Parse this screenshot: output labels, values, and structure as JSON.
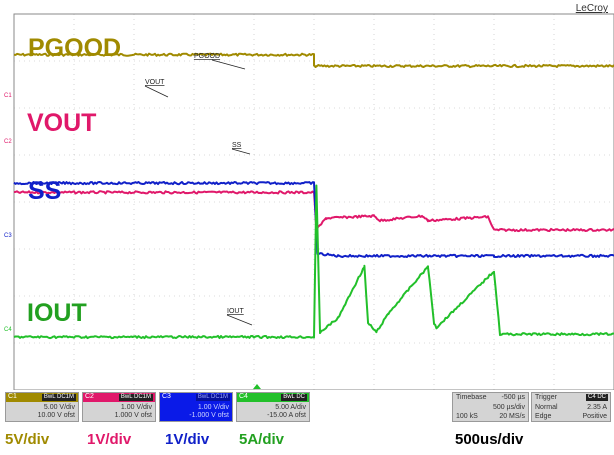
{
  "brand": "LeCroy",
  "labels": {
    "pgood": "PGOOD",
    "vout": "VOUT",
    "ss": "SS",
    "iout": "IOUT"
  },
  "trace_tags": {
    "pgood": "PGOOD",
    "vout": "VOUT",
    "ss": "SS",
    "iout": "IOUT"
  },
  "colors": {
    "c1": "#a08a00",
    "c2": "#e0186a",
    "c3": "#1020c8",
    "c4": "#22c02a",
    "grid": "#b8b8b8"
  },
  "channels": [
    {
      "id": "C1",
      "badge": "BwL DC1M",
      "vdiv": "5.00 V/div",
      "ofst": "10.00 V ofst"
    },
    {
      "id": "C2",
      "badge": "BwL DC1M",
      "vdiv": "1.00 V/div",
      "ofst": "1.000 V ofst"
    },
    {
      "id": "C3",
      "badge": "BwL DC1M",
      "vdiv": "1.00 V/div",
      "ofst": "-1.000 V ofst"
    },
    {
      "id": "C4",
      "badge": "BwL DC",
      "vdiv": "5.00 A/div",
      "ofst": "-15.00 A ofst"
    }
  ],
  "timebase": {
    "title": "Timebase",
    "delay": "-500 µs",
    "tdiv": "500 µs/div",
    "samples": "100 kS",
    "rate": "20 MS/s"
  },
  "trigger": {
    "title": "Trigger",
    "badge": "C4 DC",
    "mode": "Normal",
    "level": "2.35 A",
    "type": "Edge",
    "slope": "Positive"
  },
  "scales": {
    "c1": "5V/div",
    "c2": "1V/div",
    "c3": "1V/div",
    "c4": "5A/div",
    "time": "500us/div"
  },
  "chart_data": {
    "type": "line",
    "xlabel": "",
    "ylabel": "",
    "xlim": [
      -2.5,
      2.5
    ],
    "x_unit": "ms",
    "grid": true,
    "series": [
      {
        "name": "PGOOD",
        "unit": "V",
        "x": [
          -2.5,
          0,
          0.0,
          2.5
        ],
        "values": [
          11.2,
          11.2,
          10.0,
          10.0
        ]
      },
      {
        "name": "VOUT",
        "unit": "V",
        "x": [
          -2.5,
          0,
          0.02,
          0.1,
          0.5,
          0.55,
          0.9,
          0.95,
          1.45,
          1.5,
          2.5
        ],
        "values": [
          1.8,
          1.8,
          1.0,
          1.25,
          1.3,
          1.2,
          1.3,
          1.2,
          1.28,
          1.0,
          1.0
        ]
      },
      {
        "name": "SS",
        "unit": "V",
        "x": [
          -2.5,
          0,
          0.03,
          0.2,
          1.5,
          2.5
        ],
        "values": [
          1.7,
          1.7,
          0.2,
          0.15,
          0.15,
          0.15
        ]
      },
      {
        "name": "IOUT",
        "unit": "A",
        "x": [
          -2.5,
          0,
          0.02,
          0.05,
          0.2,
          0.42,
          0.45,
          0.52,
          0.62,
          0.95,
          1.0,
          1.02,
          1.5,
          1.55,
          2.5
        ],
        "values": [
          0,
          0,
          16,
          0.5,
          2.0,
          7.5,
          1.5,
          0.5,
          2.5,
          7.5,
          1.5,
          1.0,
          7.0,
          0.3,
          0.3
        ]
      }
    ]
  }
}
